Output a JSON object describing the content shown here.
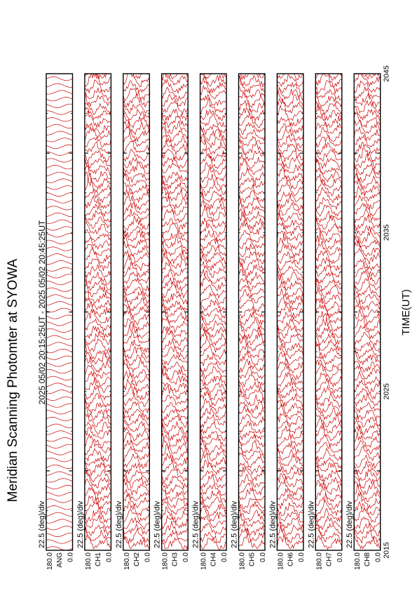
{
  "figure": {
    "title": "Meridian Scanning Photomter at SYOWA",
    "time_range_label": "2025 05/02 20:15:25UT - 2025 05/02 20:45:25UT",
    "xlabel": "TIME(UT)"
  },
  "chart_data": {
    "type": "line",
    "title": "Meridian Scanning Photomter at SYOWA",
    "xlabel": "TIME(UT)",
    "x_ticks": [
      "2015",
      "2025",
      "2035",
      "2045"
    ],
    "xlim": [
      2015,
      2045
    ],
    "line_color": "#cc0000",
    "panels": [
      {
        "name": "ANG",
        "ylim_labels": [
          "0.0",
          "180.0"
        ],
        "scale": "22.5 (deg)/div",
        "show_scale": true,
        "mode": "ang"
      },
      {
        "name": "CH1",
        "ylim_labels": [
          "0.0",
          "180.0"
        ],
        "scale": "22.5 (deg)/div",
        "show_scale": true,
        "mode": "data"
      },
      {
        "name": "CH2",
        "ylim_labels": [
          "0.0",
          "180.0"
        ],
        "scale": "22.5 (deg)/div",
        "show_scale": true,
        "mode": "data"
      },
      {
        "name": "CH3",
        "ylim_labels": [
          "0.0",
          "180.0"
        ],
        "scale": "22.5 (deg)/div",
        "show_scale": true,
        "mode": "data"
      },
      {
        "name": "CH4",
        "ylim_labels": [
          "0.0",
          "180.0"
        ],
        "scale": "22.5 (deg)/div",
        "show_scale": true,
        "mode": "data"
      },
      {
        "name": "CH5",
        "ylim_labels": [
          "0.0",
          "180.0"
        ],
        "scale": "22.5 (deg)/div",
        "show_scale": true,
        "mode": "data"
      },
      {
        "name": "CH6",
        "ylim_labels": [
          "0.0",
          "180.0"
        ],
        "scale": "22.5 (deg)/div",
        "show_scale": true,
        "mode": "data"
      },
      {
        "name": "CH7",
        "ylim_labels": [
          "0.0",
          "180.0"
        ],
        "scale": "22.5 (deg)/div",
        "show_scale": true,
        "mode": "data"
      },
      {
        "name": "CH8",
        "ylim_labels": [
          "0.0",
          "180.0"
        ],
        "scale": "22.5 (deg)/div",
        "show_scale": true,
        "mode": "data"
      }
    ]
  }
}
